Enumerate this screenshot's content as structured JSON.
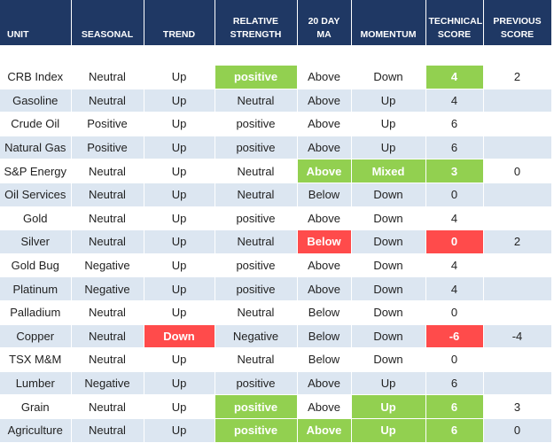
{
  "table": {
    "header": [
      "UNIT",
      "SEASONAL",
      "TREND",
      "RELATIVE STRENGTH",
      "20 DAY MA",
      "MOMENTUM",
      "TECHNICAL SCORE",
      "PREVIOUS SCORE"
    ],
    "rows": [
      [
        "CRB Index",
        "Neutral",
        "Up",
        "positive",
        "Above",
        "Down",
        "4",
        "2"
      ],
      [
        "Gasoline",
        "Neutral",
        "Up",
        "Neutral",
        "Above",
        "Up",
        "4",
        null
      ],
      [
        "Crude Oil",
        "Positive",
        "Up",
        "positive",
        "Above",
        "Up",
        "6",
        null
      ],
      [
        "Natural Gas",
        "Positive",
        "Up",
        "positive",
        "Above",
        "Up",
        "6",
        null
      ],
      [
        "S&P Energy",
        "Neutral",
        "Up",
        "Neutral",
        "Above",
        "Mixed",
        "3",
        "0"
      ],
      [
        "Oil Services",
        "Neutral",
        "Up",
        "Neutral",
        "Below",
        "Down",
        "0",
        null
      ],
      [
        "Gold",
        "Neutral",
        "Up",
        "positive",
        "Above",
        "Down",
        "4",
        null
      ],
      [
        "Silver",
        "Neutral",
        "Up",
        "Neutral",
        "Below",
        "Down",
        "0",
        "2"
      ],
      [
        "Gold Bug",
        "Negative",
        "Up",
        "positive",
        "Above",
        "Down",
        "4",
        null
      ],
      [
        "Platinum",
        "Negative",
        "Up",
        "positive",
        "Above",
        "Down",
        "4",
        null
      ],
      [
        "Palladium",
        "Neutral",
        "Up",
        "Neutral",
        "Below",
        "Down",
        "0",
        null
      ],
      [
        "Copper",
        "Neutral",
        "Down",
        "Negative",
        "Below",
        "Down",
        "-6",
        "-4"
      ],
      [
        "TSX M&M",
        "Neutral",
        "Up",
        "Neutral",
        "Below",
        "Down",
        "0",
        null
      ],
      [
        "Lumber",
        "Negative",
        "Up",
        "positive",
        "Above",
        "Up",
        "6",
        null
      ],
      [
        "Grain",
        "Neutral",
        "Up",
        "positive",
        "Above",
        "Up",
        "6",
        "3"
      ],
      [
        "Agriculture",
        "Neutral",
        "Up",
        "positive",
        "Above",
        "Up",
        "6",
        "0"
      ]
    ],
    "highlights": [
      {
        "row": 0,
        "col": 3,
        "color": "#92d050"
      },
      {
        "row": 0,
        "col": 6,
        "color": "#92d050"
      },
      {
        "row": 4,
        "col": 4,
        "color": "#92d050"
      },
      {
        "row": 4,
        "col": 5,
        "color": "#92d050"
      },
      {
        "row": 4,
        "col": 6,
        "color": "#92d050"
      },
      {
        "row": 7,
        "col": 4,
        "color": "#ff4b4b"
      },
      {
        "row": 7,
        "col": 6,
        "color": "#ff4b4b"
      },
      {
        "row": 11,
        "col": 2,
        "color": "#ff4b4b"
      },
      {
        "row": 11,
        "col": 6,
        "color": "#ff4b4b"
      },
      {
        "row": 14,
        "col": 3,
        "color": "#92d050"
      },
      {
        "row": 14,
        "col": 5,
        "color": "#92d050"
      },
      {
        "row": 14,
        "col": 6,
        "color": "#92d050"
      },
      {
        "row": 15,
        "col": 3,
        "color": "#92d050"
      },
      {
        "row": 15,
        "col": 4,
        "color": "#92d050"
      },
      {
        "row": 15,
        "col": 5,
        "color": "#92d050"
      },
      {
        "row": 15,
        "col": 6,
        "color": "#92d050"
      }
    ]
  }
}
